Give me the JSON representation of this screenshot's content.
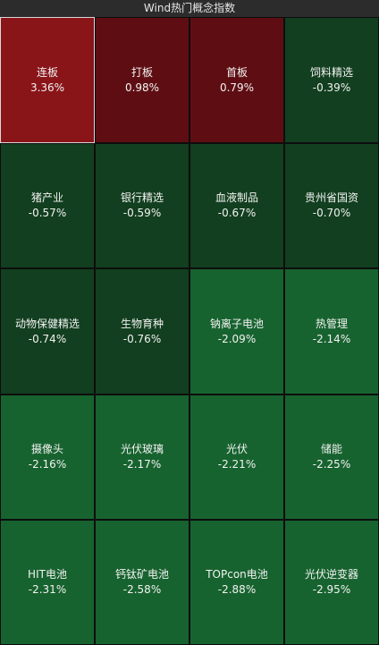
{
  "header": {
    "title": "Wind热门概念指数"
  },
  "tiles": [
    {
      "name": "连板",
      "change": "3.36%",
      "color": "#8a1519",
      "selected": true
    },
    {
      "name": "打板",
      "change": "0.98%",
      "color": "#5e0e13"
    },
    {
      "name": "首板",
      "change": "0.79%",
      "color": "#5e0e13"
    },
    {
      "name": "饲料精选",
      "change": "-0.39%",
      "color": "#123f1f"
    },
    {
      "name": "猪产业",
      "change": "-0.57%",
      "color": "#123f1f"
    },
    {
      "name": "银行精选",
      "change": "-0.59%",
      "color": "#123f1f"
    },
    {
      "name": "血液制品",
      "change": "-0.67%",
      "color": "#123f1f"
    },
    {
      "name": "贵州省国资",
      "change": "-0.70%",
      "color": "#123f1f"
    },
    {
      "name": "动物保健精选",
      "change": "-0.74%",
      "color": "#123f1f"
    },
    {
      "name": "生物育种",
      "change": "-0.76%",
      "color": "#123f1f"
    },
    {
      "name": "钠离子电池",
      "change": "-2.09%",
      "color": "#17632f"
    },
    {
      "name": "热管理",
      "change": "-2.14%",
      "color": "#17632f"
    },
    {
      "name": "摄像头",
      "change": "-2.16%",
      "color": "#17632f"
    },
    {
      "name": "光伏玻璃",
      "change": "-2.17%",
      "color": "#17632f"
    },
    {
      "name": "光伏",
      "change": "-2.21%",
      "color": "#17632f"
    },
    {
      "name": "储能",
      "change": "-2.25%",
      "color": "#17632f"
    },
    {
      "name": "HIT电池",
      "change": "-2.31%",
      "color": "#17632f"
    },
    {
      "name": "钙钛矿电池",
      "change": "-2.58%",
      "color": "#17632f"
    },
    {
      "name": "TOPcon电池",
      "change": "-2.88%",
      "color": "#17632f"
    },
    {
      "name": "光伏逆变器",
      "change": "-2.95%",
      "color": "#17632f"
    }
  ]
}
